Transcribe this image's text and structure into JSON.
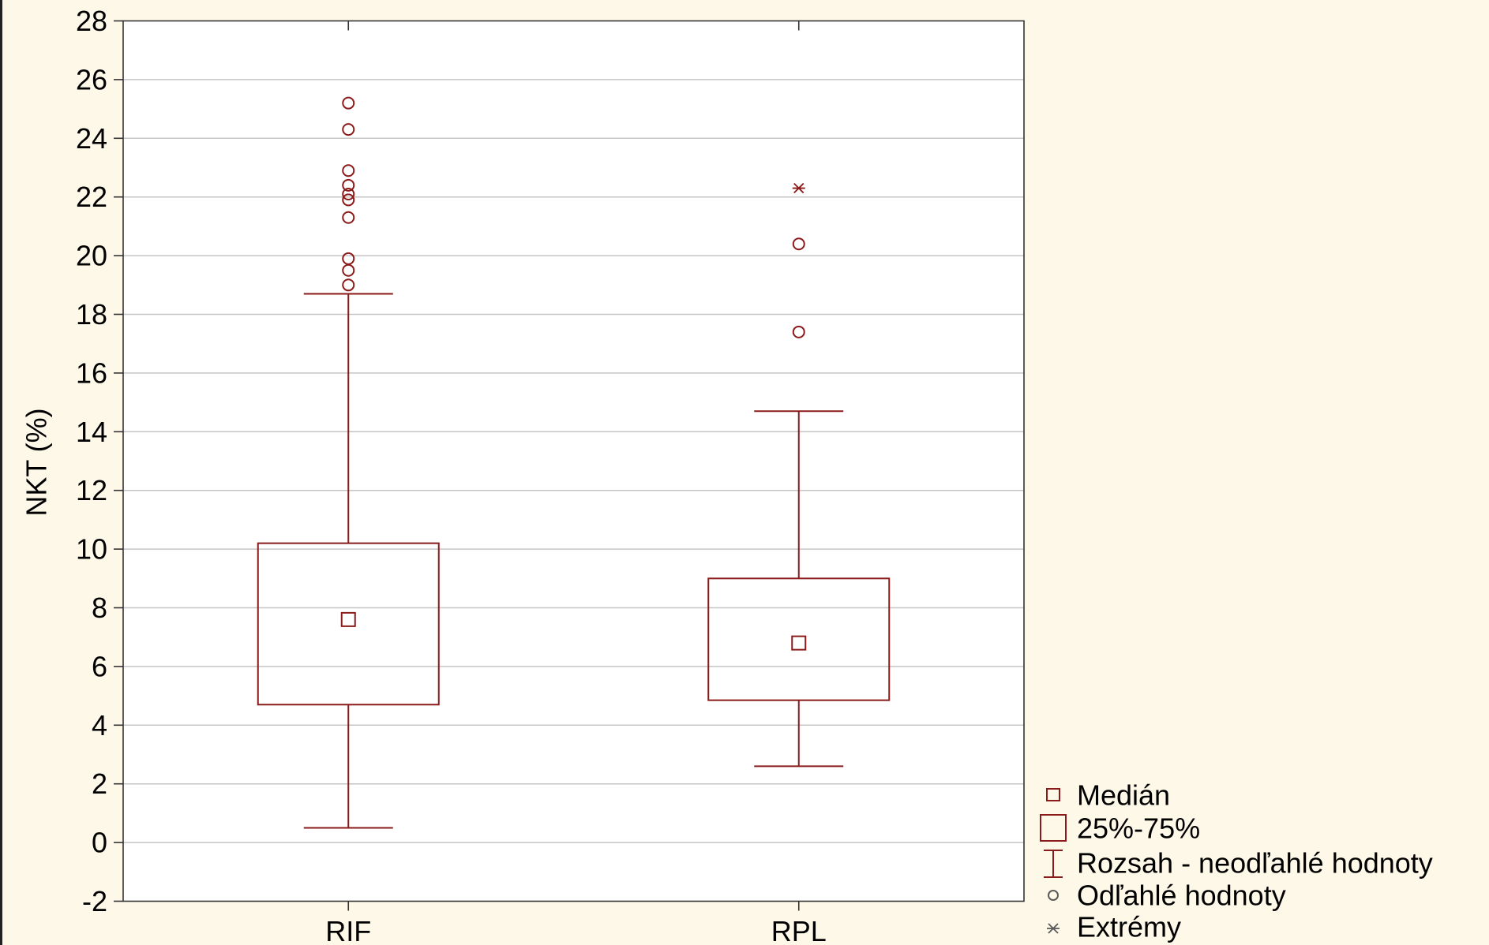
{
  "chart_data": {
    "type": "box",
    "title": "",
    "xlabel": "",
    "ylabel": "NKT (%)",
    "categories": [
      "RIF",
      "RPL"
    ],
    "ylim": [
      -2,
      28
    ],
    "yticks": [
      -2,
      0,
      2,
      4,
      6,
      8,
      10,
      12,
      14,
      16,
      18,
      20,
      22,
      24,
      26,
      28
    ],
    "grid": true,
    "boxes": [
      {
        "category": "RIF",
        "median": 7.6,
        "q1": 4.7,
        "q3": 10.2,
        "whisker_low": 0.5,
        "whisker_high": 18.7,
        "outliers": [
          25.2,
          24.3,
          22.9,
          22.4,
          22.1,
          21.9,
          21.3,
          19.9,
          19.5,
          19.0
        ],
        "extremes": []
      },
      {
        "category": "RPL",
        "median": 6.8,
        "q1": 4.85,
        "q3": 9.0,
        "whisker_low": 2.6,
        "whisker_high": 14.7,
        "outliers": [
          20.4,
          17.4
        ],
        "extremes": [
          22.3
        ]
      }
    ],
    "legend_position": "bottom-right, outside plot",
    "legend": [
      {
        "symbol": "small-square-icon",
        "label": "Medián"
      },
      {
        "symbol": "box-icon",
        "label": "25%-75%"
      },
      {
        "symbol": "whisker-icon",
        "label": "Rozsah - neodľahlé hodnoty"
      },
      {
        "symbol": "circle-icon",
        "label": "Odľahlé hodnoty"
      },
      {
        "symbol": "asterisk-icon",
        "label": "Extrémy"
      }
    ]
  },
  "colors": {
    "background": "#FEF8E8",
    "plot_area": "#FFFFFF",
    "series": "#8B1A1A",
    "grid": "#C4C4C4",
    "legend_secondary": "#5A5A5A"
  }
}
